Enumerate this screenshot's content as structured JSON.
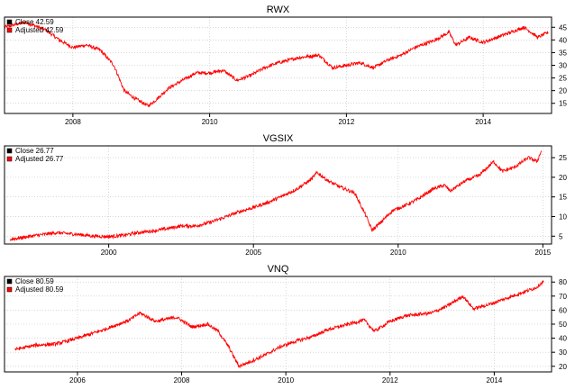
{
  "colors": {
    "close": "#000000",
    "adjusted": "#ff0000",
    "grid": "#bfbfbf",
    "frame": "#000000"
  },
  "chart_data": [
    {
      "type": "line",
      "title": "RWX",
      "xlim": [
        2007.0,
        2015.0
      ],
      "ylim": [
        11,
        49
      ],
      "x_ticks": [
        2008,
        2010,
        2012,
        2014
      ],
      "y_ticks": [
        15,
        20,
        25,
        30,
        35,
        40,
        45
      ],
      "legend": [
        "Close 42.59",
        "Adjusted 42.59"
      ],
      "legend_position": "top-left",
      "series": [
        {
          "name": "Adjusted",
          "points": [
            [
              2007.0,
              45
            ],
            [
              2007.3,
              47
            ],
            [
              2007.6,
              44
            ],
            [
              2007.8,
              40
            ],
            [
              2008.0,
              37
            ],
            [
              2008.2,
              38
            ],
            [
              2008.4,
              36
            ],
            [
              2008.6,
              30
            ],
            [
              2008.75,
              20
            ],
            [
              2008.9,
              17
            ],
            [
              2009.1,
              14
            ],
            [
              2009.2,
              16
            ],
            [
              2009.4,
              21
            ],
            [
              2009.6,
              24
            ],
            [
              2009.8,
              27
            ],
            [
              2010.0,
              27
            ],
            [
              2010.2,
              28
            ],
            [
              2010.4,
              24
            ],
            [
              2010.6,
              26
            ],
            [
              2010.8,
              29
            ],
            [
              2011.0,
              31
            ],
            [
              2011.3,
              33
            ],
            [
              2011.6,
              34
            ],
            [
              2011.8,
              29
            ],
            [
              2012.0,
              30
            ],
            [
              2012.2,
              31
            ],
            [
              2012.4,
              29
            ],
            [
              2012.6,
              32
            ],
            [
              2012.8,
              34
            ],
            [
              2013.0,
              37
            ],
            [
              2013.3,
              40
            ],
            [
              2013.5,
              43
            ],
            [
              2013.6,
              38
            ],
            [
              2013.8,
              41
            ],
            [
              2014.0,
              39
            ],
            [
              2014.3,
              42
            ],
            [
              2014.6,
              45
            ],
            [
              2014.8,
              41
            ],
            [
              2014.95,
              43
            ]
          ]
        }
      ]
    },
    {
      "type": "line",
      "title": "VGSIX",
      "xlim": [
        1996.4,
        2015.3
      ],
      "ylim": [
        3,
        28
      ],
      "x_ticks": [
        2000,
        2005,
        2010,
        2015
      ],
      "y_ticks": [
        5,
        10,
        15,
        20,
        25
      ],
      "legend": [
        "Close 26.77",
        "Adjusted 26.77"
      ],
      "legend_position": "top-left",
      "series": [
        {
          "name": "Adjusted",
          "points": [
            [
              1996.6,
              4.2
            ],
            [
              1997.5,
              5.2
            ],
            [
              1998.2,
              5.9
            ],
            [
              1999.0,
              5.4
            ],
            [
              1999.5,
              5.0
            ],
            [
              2000.0,
              4.9
            ],
            [
              2000.5,
              5.2
            ],
            [
              2001.0,
              5.9
            ],
            [
              2001.5,
              6.3
            ],
            [
              2002.0,
              6.9
            ],
            [
              2002.5,
              7.6
            ],
            [
              2003.0,
              7.6
            ],
            [
              2003.5,
              8.5
            ],
            [
              2004.0,
              9.8
            ],
            [
              2004.5,
              11.2
            ],
            [
              2005.0,
              12.3
            ],
            [
              2005.5,
              13.6
            ],
            [
              2006.0,
              15.2
            ],
            [
              2006.5,
              17.0
            ],
            [
              2007.0,
              19.5
            ],
            [
              2007.2,
              21.2
            ],
            [
              2007.6,
              19.0
            ],
            [
              2008.0,
              17.5
            ],
            [
              2008.5,
              16.0
            ],
            [
              2008.7,
              13.0
            ],
            [
              2008.9,
              10.0
            ],
            [
              2009.1,
              6.5
            ],
            [
              2009.4,
              8.5
            ],
            [
              2009.8,
              11.5
            ],
            [
              2010.3,
              13.0
            ],
            [
              2010.7,
              14.5
            ],
            [
              2011.2,
              17.0
            ],
            [
              2011.6,
              18.0
            ],
            [
              2011.8,
              16.5
            ],
            [
              2012.3,
              19.0
            ],
            [
              2012.8,
              20.5
            ],
            [
              2013.3,
              24.0
            ],
            [
              2013.6,
              21.5
            ],
            [
              2014.0,
              22.5
            ],
            [
              2014.5,
              25.0
            ],
            [
              2014.8,
              24.0
            ],
            [
              2014.95,
              26.77
            ]
          ]
        }
      ]
    },
    {
      "type": "line",
      "title": "VNQ",
      "xlim": [
        2004.6,
        2015.1
      ],
      "ylim": [
        16,
        84
      ],
      "x_ticks": [
        2006,
        2008,
        2010,
        2012,
        2014
      ],
      "y_ticks": [
        20,
        30,
        40,
        50,
        60,
        70,
        80
      ],
      "legend": [
        "Close 80.59",
        "Adjusted 80.59"
      ],
      "legend_position": "top-left",
      "series": [
        {
          "name": "Adjusted",
          "points": [
            [
              2004.8,
              32
            ],
            [
              2005.2,
              35
            ],
            [
              2005.6,
              36
            ],
            [
              2006.0,
              40
            ],
            [
              2006.5,
              46
            ],
            [
              2007.0,
              53
            ],
            [
              2007.2,
              58
            ],
            [
              2007.5,
              52
            ],
            [
              2007.9,
              55
            ],
            [
              2008.2,
              48
            ],
            [
              2008.5,
              50
            ],
            [
              2008.7,
              45
            ],
            [
              2008.9,
              34
            ],
            [
              2009.1,
              20
            ],
            [
              2009.3,
              23
            ],
            [
              2009.6,
              28
            ],
            [
              2009.9,
              34
            ],
            [
              2010.2,
              38
            ],
            [
              2010.5,
              41
            ],
            [
              2010.8,
              46
            ],
            [
              2011.2,
              50
            ],
            [
              2011.5,
              53
            ],
            [
              2011.7,
              45
            ],
            [
              2012.0,
              52
            ],
            [
              2012.3,
              56
            ],
            [
              2012.8,
              58
            ],
            [
              2013.1,
              63
            ],
            [
              2013.4,
              70
            ],
            [
              2013.6,
              61
            ],
            [
              2013.9,
              64
            ],
            [
              2014.2,
              68
            ],
            [
              2014.5,
              72
            ],
            [
              2014.8,
              76
            ],
            [
              2014.95,
              80.59
            ]
          ]
        }
      ]
    }
  ]
}
